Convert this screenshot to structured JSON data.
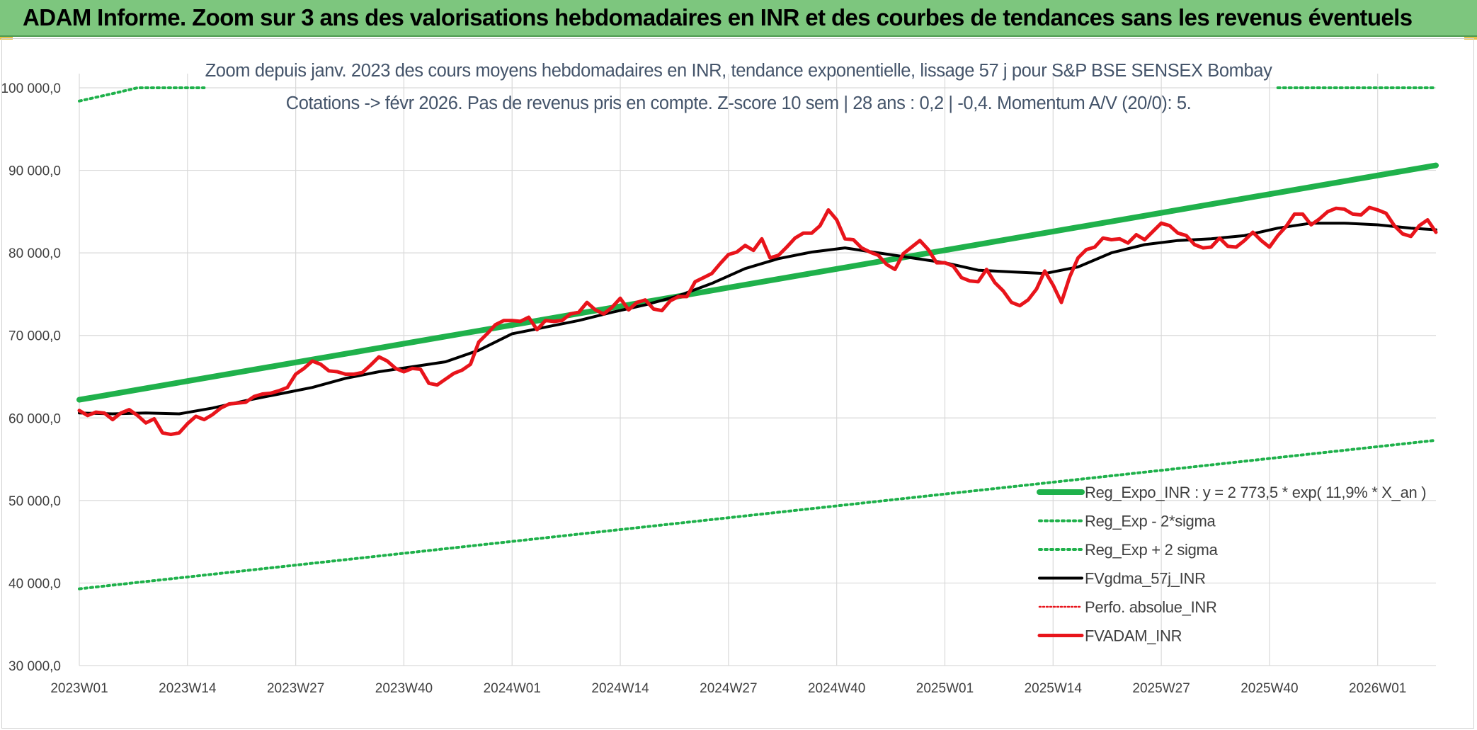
{
  "banner": {
    "title": "ADAM Informe. Zoom sur 3 ans des valorisations hebdomadaires en INR et des courbes de tendances sans les revenus éventuels"
  },
  "colors": {
    "banner_bg": "#7dc67e",
    "regression": "#1fb14b",
    "sigma_bands": "#1fb14b",
    "smoothed": "#000000",
    "price": "#e8141b",
    "perf": "#e8141b",
    "grid": "#d9d9d9"
  },
  "chart_data": {
    "type": "line",
    "title_lines": [
      "Zoom depuis janv. 2023 des cours moyens hebdomadaires en INR, tendance exponentielle, lissage 57 j pour S&P BSE SENSEX Bombay",
      "Cotations -> févr 2026. Pas de revenus pris en compte. Z-score 10 sem | 28 ans : 0,2 | -0,4. Momentum A/V (20/0): 5."
    ],
    "ylim": [
      30000,
      100000
    ],
    "y_ticks": [
      "30 000,0",
      "40 000,0",
      "50 000,0",
      "60 000,0",
      "70 000,0",
      "80 000,0",
      "90 000,0",
      "100 000,0"
    ],
    "x_range_weeks": [
      0,
      163
    ],
    "x_ticks": [
      {
        "label": "2023W01",
        "week": 0
      },
      {
        "label": "2023W14",
        "week": 13
      },
      {
        "label": "2023W27",
        "week": 26
      },
      {
        "label": "2023W40",
        "week": 39
      },
      {
        "label": "2024W01",
        "week": 52
      },
      {
        "label": "2024W14",
        "week": 65
      },
      {
        "label": "2024W27",
        "week": 78
      },
      {
        "label": "2024W40",
        "week": 91
      },
      {
        "label": "2025W01",
        "week": 104
      },
      {
        "label": "2025W14",
        "week": 117
      },
      {
        "label": "2025W27",
        "week": 130
      },
      {
        "label": "2025W40",
        "week": 143
      },
      {
        "label": "2026W01",
        "week": 156
      }
    ],
    "legend": [
      "Reg_Expo_INR : y = 2 773,5 * exp( 11,9% *  X_an )",
      "Reg_Exp - 2*sigma",
      "Reg_Exp + 2 sigma",
      "FVgdma_57j_INR",
      "Perfo. absolue_INR",
      "FVADAM_INR"
    ],
    "series": [
      {
        "name": "Reg_Expo_INR",
        "style": "solid-thick",
        "points": [
          [
            0,
            62200
          ],
          [
            163,
            90600
          ]
        ]
      },
      {
        "name": "Reg_Exp - 2*sigma",
        "style": "dotted",
        "points": [
          [
            0,
            39300
          ],
          [
            163,
            57300
          ]
        ]
      },
      {
        "name": "Reg_Exp + 2 sigma",
        "style": "dotted",
        "points": [
          [
            0,
            98400
          ],
          [
            4,
            99300
          ],
          [
            7,
            100000
          ],
          [
            15,
            100000
          ]
        ],
        "points_right": [
          [
            144,
            100000
          ],
          [
            163,
            100000
          ]
        ]
      },
      {
        "name": "FVgdma_57j_INR",
        "style": "solid",
        "points": [
          [
            0,
            60600
          ],
          [
            4,
            60500
          ],
          [
            8,
            60600
          ],
          [
            12,
            60500
          ],
          [
            16,
            61200
          ],
          [
            20,
            62100
          ],
          [
            24,
            62900
          ],
          [
            28,
            63700
          ],
          [
            32,
            64800
          ],
          [
            36,
            65600
          ],
          [
            40,
            66200
          ],
          [
            44,
            66800
          ],
          [
            48,
            68200
          ],
          [
            52,
            70200
          ],
          [
            56,
            71000
          ],
          [
            60,
            71800
          ],
          [
            64,
            72800
          ],
          [
            68,
            73700
          ],
          [
            72,
            74800
          ],
          [
            76,
            76300
          ],
          [
            80,
            78100
          ],
          [
            84,
            79300
          ],
          [
            88,
            80100
          ],
          [
            92,
            80600
          ],
          [
            96,
            80000
          ],
          [
            100,
            79400
          ],
          [
            104,
            78800
          ],
          [
            108,
            77900
          ],
          [
            112,
            77700
          ],
          [
            116,
            77500
          ],
          [
            120,
            78300
          ],
          [
            124,
            80000
          ],
          [
            128,
            81000
          ],
          [
            132,
            81500
          ],
          [
            136,
            81700
          ],
          [
            140,
            82100
          ],
          [
            144,
            83000
          ],
          [
            148,
            83600
          ],
          [
            152,
            83600
          ],
          [
            156,
            83400
          ],
          [
            160,
            83000
          ],
          [
            163,
            82800
          ]
        ]
      },
      {
        "name": "FVADAM_INR",
        "style": "solid-thick",
        "points": [
          [
            0,
            60900
          ],
          [
            1,
            60300
          ],
          [
            2,
            60700
          ],
          [
            3,
            60600
          ],
          [
            4,
            59800
          ],
          [
            5,
            60600
          ],
          [
            6,
            61000
          ],
          [
            7,
            60300
          ],
          [
            8,
            59400
          ],
          [
            9,
            59900
          ],
          [
            10,
            58200
          ],
          [
            11,
            58000
          ],
          [
            12,
            58200
          ],
          [
            13,
            59300
          ],
          [
            14,
            60200
          ],
          [
            15,
            59800
          ],
          [
            16,
            60400
          ],
          [
            17,
            61200
          ],
          [
            18,
            61700
          ],
          [
            19,
            61800
          ],
          [
            20,
            61900
          ],
          [
            21,
            62600
          ],
          [
            22,
            62900
          ],
          [
            23,
            63000
          ],
          [
            24,
            63300
          ],
          [
            25,
            63700
          ],
          [
            26,
            65300
          ],
          [
            27,
            66000
          ],
          [
            28,
            66900
          ],
          [
            29,
            66500
          ],
          [
            30,
            65700
          ],
          [
            31,
            65600
          ],
          [
            32,
            65300
          ],
          [
            33,
            65300
          ],
          [
            34,
            65500
          ],
          [
            35,
            66400
          ],
          [
            36,
            67400
          ],
          [
            37,
            66900
          ],
          [
            38,
            66000
          ],
          [
            39,
            65600
          ],
          [
            40,
            66000
          ],
          [
            41,
            65900
          ],
          [
            42,
            64200
          ],
          [
            43,
            64000
          ],
          [
            44,
            64700
          ],
          [
            45,
            65400
          ],
          [
            46,
            65800
          ],
          [
            47,
            66500
          ],
          [
            48,
            69200
          ],
          [
            49,
            70200
          ],
          [
            50,
            71300
          ],
          [
            51,
            71800
          ],
          [
            52,
            71800
          ],
          [
            53,
            71700
          ],
          [
            54,
            72200
          ],
          [
            55,
            70700
          ],
          [
            56,
            71800
          ],
          [
            57,
            71700
          ],
          [
            58,
            71800
          ],
          [
            59,
            72600
          ],
          [
            60,
            72800
          ],
          [
            61,
            74000
          ],
          [
            62,
            73100
          ],
          [
            63,
            72600
          ],
          [
            64,
            73400
          ],
          [
            65,
            74500
          ],
          [
            66,
            73100
          ],
          [
            67,
            74000
          ],
          [
            68,
            74300
          ],
          [
            69,
            73200
          ],
          [
            70,
            73000
          ],
          [
            71,
            74200
          ],
          [
            72,
            74700
          ],
          [
            73,
            74700
          ],
          [
            74,
            76500
          ],
          [
            75,
            77000
          ],
          [
            76,
            77500
          ],
          [
            77,
            78700
          ],
          [
            78,
            79800
          ],
          [
            79,
            80100
          ],
          [
            80,
            80900
          ],
          [
            81,
            80300
          ],
          [
            82,
            81700
          ],
          [
            83,
            79400
          ],
          [
            84,
            79700
          ],
          [
            85,
            80700
          ],
          [
            86,
            81800
          ],
          [
            87,
            82400
          ],
          [
            88,
            82400
          ],
          [
            89,
            83300
          ],
          [
            90,
            85200
          ],
          [
            91,
            84000
          ],
          [
            92,
            81700
          ],
          [
            93,
            81600
          ],
          [
            94,
            80600
          ],
          [
            95,
            80100
          ],
          [
            96,
            79700
          ],
          [
            97,
            78600
          ],
          [
            98,
            78000
          ],
          [
            99,
            79900
          ],
          [
            100,
            80700
          ],
          [
            101,
            81500
          ],
          [
            102,
            80400
          ],
          [
            103,
            78800
          ],
          [
            104,
            78800
          ],
          [
            105,
            78400
          ],
          [
            106,
            77000
          ],
          [
            107,
            76600
          ],
          [
            108,
            76500
          ],
          [
            109,
            78000
          ],
          [
            110,
            76400
          ],
          [
            111,
            75400
          ],
          [
            112,
            74000
          ],
          [
            113,
            73600
          ],
          [
            114,
            74300
          ],
          [
            115,
            75600
          ],
          [
            116,
            77800
          ],
          [
            117,
            76100
          ],
          [
            118,
            74000
          ],
          [
            119,
            77100
          ],
          [
            120,
            79400
          ],
          [
            121,
            80400
          ],
          [
            122,
            80700
          ],
          [
            123,
            81800
          ],
          [
            124,
            81600
          ],
          [
            125,
            81700
          ],
          [
            126,
            81200
          ],
          [
            127,
            82200
          ],
          [
            128,
            81600
          ],
          [
            129,
            82600
          ],
          [
            130,
            83600
          ],
          [
            131,
            83300
          ],
          [
            132,
            82400
          ],
          [
            133,
            82100
          ],
          [
            134,
            81000
          ],
          [
            135,
            80600
          ],
          [
            136,
            80700
          ],
          [
            137,
            81800
          ],
          [
            138,
            80800
          ],
          [
            139,
            80700
          ],
          [
            140,
            81500
          ],
          [
            141,
            82500
          ],
          [
            142,
            81500
          ],
          [
            143,
            80700
          ],
          [
            144,
            82100
          ],
          [
            145,
            83200
          ],
          [
            146,
            84700
          ],
          [
            147,
            84700
          ],
          [
            148,
            83400
          ],
          [
            149,
            84100
          ],
          [
            150,
            85000
          ],
          [
            151,
            85400
          ],
          [
            152,
            85300
          ],
          [
            153,
            84700
          ],
          [
            154,
            84600
          ],
          [
            155,
            85500
          ],
          [
            156,
            85200
          ],
          [
            157,
            84800
          ],
          [
            158,
            83300
          ],
          [
            159,
            82300
          ],
          [
            160,
            82000
          ],
          [
            161,
            83300
          ],
          [
            162,
            84000
          ],
          [
            163,
            82500
          ]
        ]
      }
    ]
  }
}
